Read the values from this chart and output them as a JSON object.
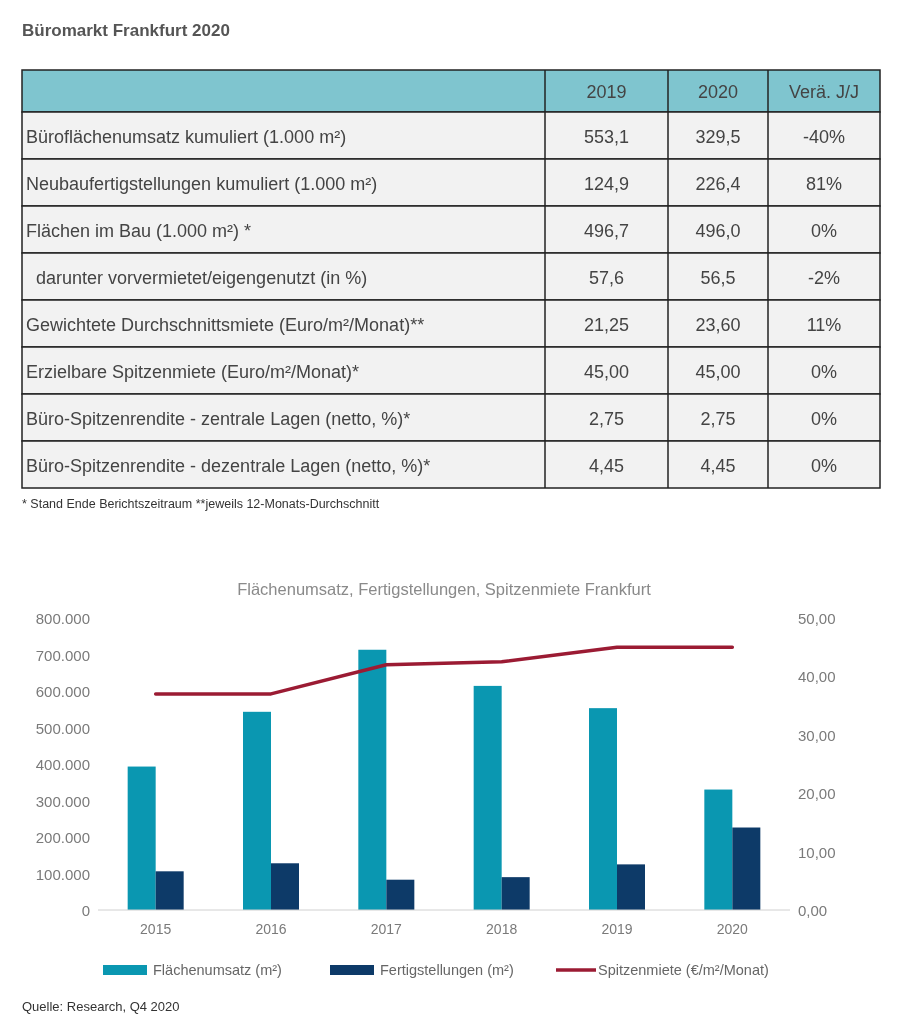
{
  "chart_data": [
    {
      "type": "other",
      "title": "Büromarkt Frankfurt 2020",
      "categories": [
        "2019",
        "2020",
        "Verä. J/J"
      ],
      "y_categories": [
        "Büroflächenumsatz kumuliert (1.000 m²)",
        "Neubaufertigstellungen kumuliert (1.000 m²)",
        "Flächen im Bau (1.000 m²) *",
        "  darunter vorvermietet/eigengenutzt (in %)",
        "Gewichtete Durchschnittsmiete (Euro/m²/Monat)**",
        "Erzielbare Spitzenmiete (Euro/m²/Monat)*",
        "Büro-Spitzenrendite - zentrale Lagen (netto, %)*",
        "Büro-Spitzenrendite - dezentrale Lagen (netto, %)*"
      ],
      "cell_labels": [
        [
          "553,1",
          "329,5",
          "-40%"
        ],
        [
          "124,9",
          "226,4",
          "81%"
        ],
        [
          "496,7",
          "496,0",
          "0%"
        ],
        [
          "57,6",
          "56,5",
          "-2%"
        ],
        [
          "21,25",
          "23,60",
          "11%"
        ],
        [
          "45,00",
          "45,00",
          "0%"
        ],
        [
          "2,75",
          "2,75",
          "0%"
        ],
        [
          "4,45",
          "4,45",
          "0%"
        ]
      ],
      "annotations": [
        "* Stand Ende Berichtszeitraum **jeweils 12-Monats-Durchschnitt"
      ]
    },
    {
      "type": "bar",
      "title": "Flächenumsatz, Fertigstellungen, Spitzenmiete Frankfurt",
      "categories": [
        "2015",
        "2016",
        "2017",
        "2018",
        "2019",
        "2020"
      ],
      "series": [
        {
          "name": "Flächenumsatz (m²)",
          "color": "#0a97b1",
          "values": [
            393000,
            543000,
            713000,
            614000,
            553000,
            330000
          ]
        },
        {
          "name": "Fertigstellungen (m²)",
          "color": "#0d3a68",
          "values": [
            106000,
            128000,
            83000,
            90000,
            125000,
            226000
          ]
        },
        {
          "name": "Spitzenmiete (€/m²/Monat)",
          "color": "#9b1b33",
          "type": "line",
          "axis": "y2",
          "values": [
            37,
            37,
            42,
            42.5,
            45,
            45
          ]
        }
      ],
      "ylim": [
        0,
        800000
      ],
      "yticks": [
        0,
        {
          "value": 100000,
          "label": "100.000"
        },
        {
          "value": 200000,
          "label": "200.000"
        },
        {
          "value": 300000,
          "label": "300.000"
        },
        {
          "value": 400000,
          "label": "400.000"
        },
        {
          "value": 500000,
          "label": "500.000"
        },
        {
          "value": 600000,
          "label": "600.000"
        },
        {
          "value": 700000,
          "label": "700.000"
        },
        {
          "value": 800000,
          "label": "800.000"
        }
      ],
      "y2lim": [
        0,
        50
      ],
      "y2ticks": [
        {
          "value": 0,
          "label": "0,00"
        },
        {
          "value": 10,
          "label": "10,00"
        },
        {
          "value": 20,
          "label": "20,00"
        },
        {
          "value": 30,
          "label": "30,00"
        },
        {
          "value": 40,
          "label": "40,00"
        },
        {
          "value": 50,
          "label": "50,00"
        }
      ],
      "legend": "bottom",
      "annotations": [
        "Quelle: Research, Q4 2020"
      ]
    }
  ]
}
